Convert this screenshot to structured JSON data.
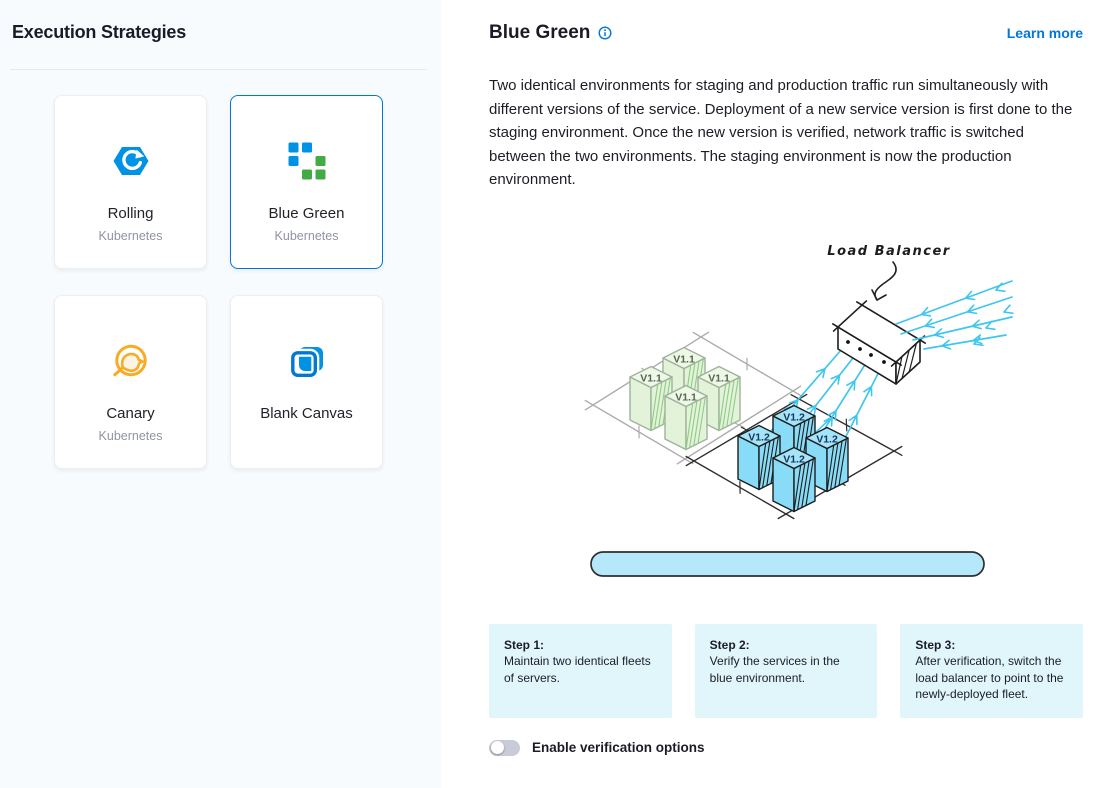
{
  "left_panel": {
    "title": "Execution Strategies",
    "selected_strategy": "Blue Green",
    "strategies": [
      {
        "label": "Rolling",
        "sublabel": "Kubernetes",
        "icon": "rolling-icon"
      },
      {
        "label": "Blue Green",
        "sublabel": "Kubernetes",
        "icon": "blue-green-icon"
      },
      {
        "label": "Canary",
        "sublabel": "Kubernetes",
        "icon": "canary-icon"
      },
      {
        "label": "Blank Canvas",
        "sublabel": "",
        "icon": "blank-canvas-icon"
      }
    ]
  },
  "detail_panel": {
    "title": "Blue Green",
    "learn_more_label": "Learn more",
    "description": "Two identical environments for staging and production traffic run simultaneously with different versions of the service. Deployment of a new service version is first done to the staging environment. Once the new version is verified, network traffic is switched between the two environments. The staging environment is now the production environment.",
    "diagram": {
      "load_balancer_label": "Load Balancer",
      "staging_fleet": {
        "version_label": "V1.1",
        "server_count": 4,
        "color": "#e8f6e1"
      },
      "production_fleet": {
        "version_label": "V1.2",
        "server_count": 4,
        "color": "#8eddf8"
      },
      "arrow_color": "#3ec6f0"
    },
    "steps": [
      {
        "title": "Step 1:",
        "description": "Maintain two identical fleets of servers."
      },
      {
        "title": "Step 2:",
        "description": "Verify the services in the blue environment."
      },
      {
        "title": "Step 3:",
        "description": "After verification, switch the load balancer to point to the newly-deployed fleet."
      }
    ],
    "verification_toggle": {
      "label": "Enable verification options",
      "state": "off"
    }
  },
  "colors": {
    "accent_blue": "#0278d5",
    "icon_blue": "#0092e4",
    "icon_green": "#42ab45",
    "icon_orange": "#f9a825",
    "left_panel_bg": "#f8fbfe",
    "step_box_bg": "#e0f6fb"
  }
}
